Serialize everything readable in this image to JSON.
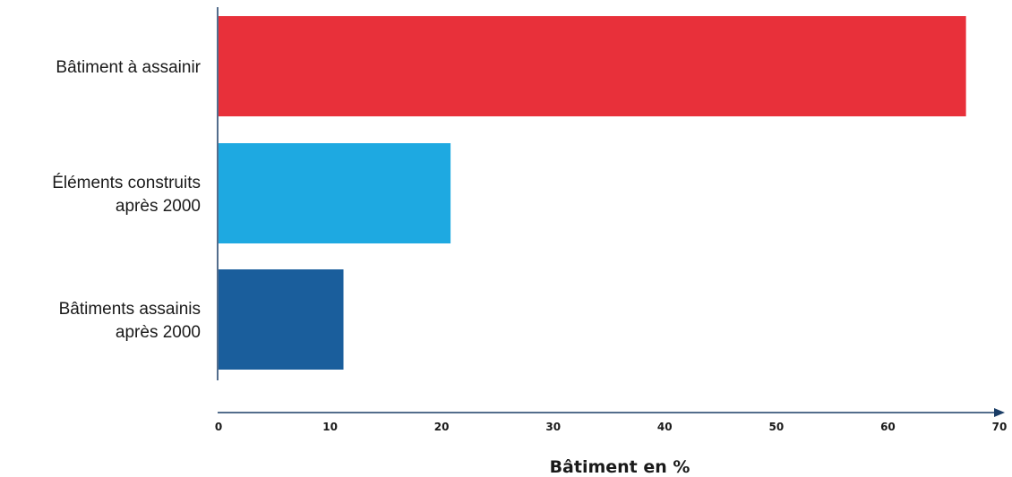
{
  "chart_data": {
    "type": "bar",
    "orientation": "horizontal",
    "categories": [
      [
        "Bâtiment à assainir"
      ],
      [
        "Éléments construits",
        "après 2000"
      ],
      [
        "Bâtiments assainis",
        "après 2000"
      ]
    ],
    "values": [
      67,
      20.8,
      11.2
    ],
    "colors": [
      "#e8303a",
      "#1ea9e1",
      "#1a5e9c"
    ],
    "xlabel": "Bâtiment en %",
    "xlim": [
      0,
      70
    ],
    "xticks": [
      "0",
      "10",
      "20",
      "30",
      "40",
      "50",
      "60",
      "70"
    ],
    "grid": false,
    "legend": false
  }
}
